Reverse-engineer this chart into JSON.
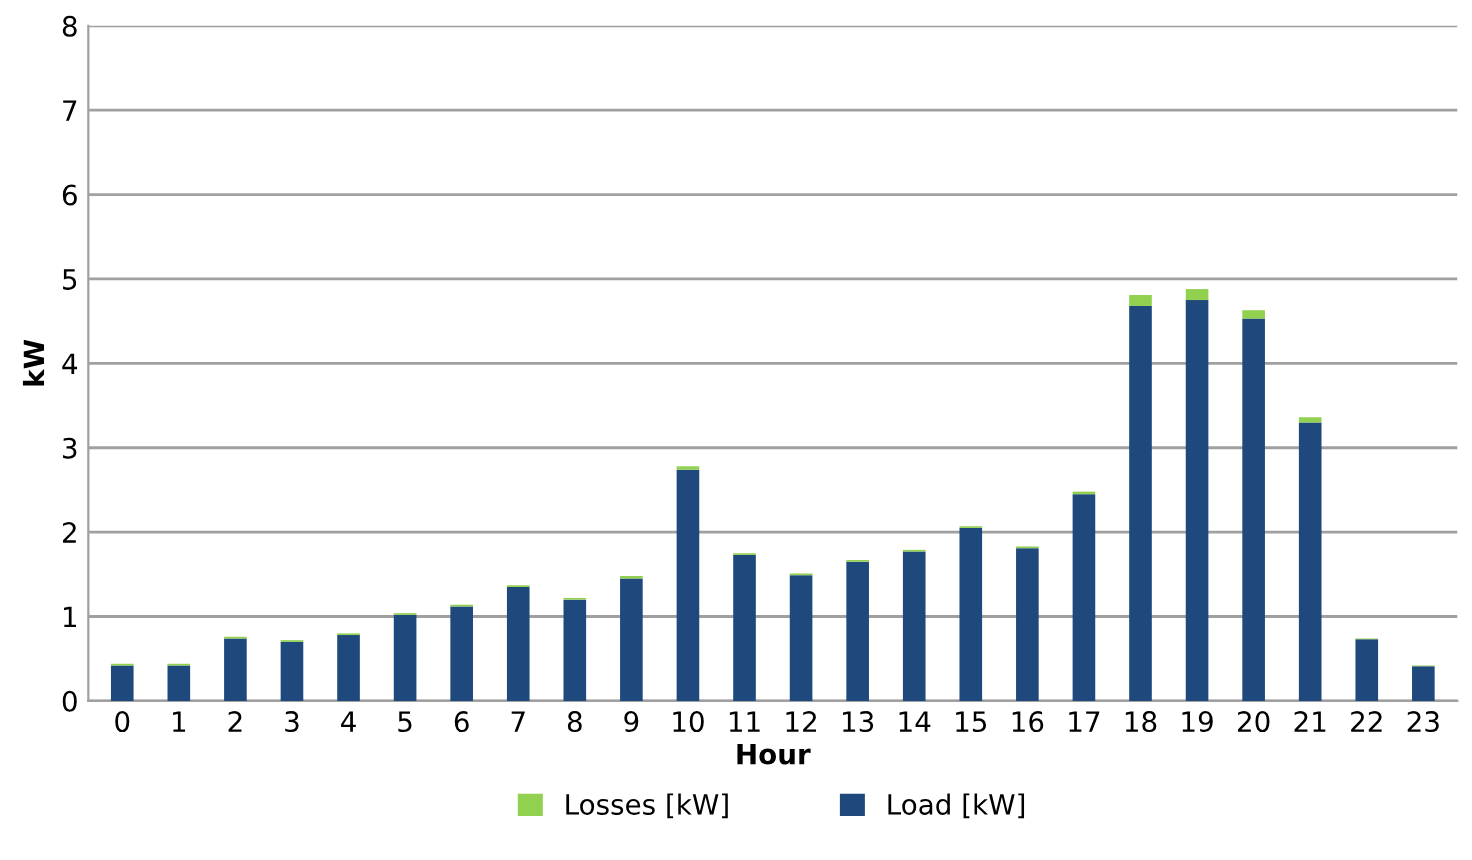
{
  "chart_data": {
    "type": "bar",
    "stacked": true,
    "xlabel": "Hour",
    "ylabel": "kW",
    "categories": [
      "0",
      "1",
      "2",
      "3",
      "4",
      "5",
      "6",
      "7",
      "8",
      "9",
      "10",
      "11",
      "12",
      "13",
      "14",
      "15",
      "16",
      "17",
      "18",
      "19",
      "20",
      "21",
      "22",
      "23"
    ],
    "series": [
      {
        "name": "Load [kW]",
        "color": "#1f497d",
        "values": [
          0.42,
          0.42,
          0.74,
          0.7,
          0.78,
          1.02,
          1.12,
          1.35,
          1.2,
          1.45,
          2.74,
          1.73,
          1.49,
          1.65,
          1.77,
          2.05,
          1.81,
          2.45,
          4.68,
          4.75,
          4.53,
          3.3,
          0.73,
          0.41
        ]
      },
      {
        "name": "Losses [kW]",
        "color": "#92d050",
        "values": [
          0.02,
          0.02,
          0.02,
          0.02,
          0.02,
          0.02,
          0.02,
          0.02,
          0.02,
          0.03,
          0.04,
          0.02,
          0.02,
          0.02,
          0.02,
          0.02,
          0.02,
          0.03,
          0.13,
          0.13,
          0.1,
          0.06,
          0.01,
          0.01
        ]
      }
    ],
    "ylim": [
      0,
      8
    ],
    "yticks": [
      0,
      1,
      2,
      3,
      4,
      5,
      6,
      7,
      8
    ],
    "grid": "y",
    "legend": "bottom"
  }
}
